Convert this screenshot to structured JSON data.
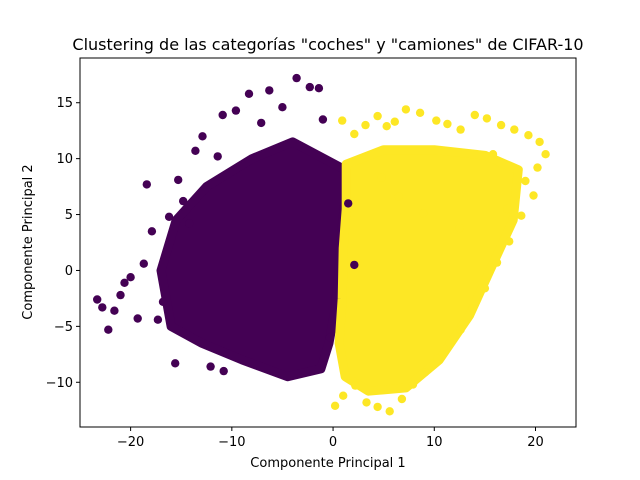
{
  "chart_data": {
    "type": "scatter",
    "title": "Clustering de las categorías \"coches\" y \"camiones\" de CIFAR-10",
    "xlabel": "Componente Principal 1",
    "ylabel": "Componente Principal 2",
    "xlim": [
      -25,
      24
    ],
    "ylim": [
      -14,
      19
    ],
    "xticks": [
      -20,
      -10,
      0,
      10,
      20
    ],
    "yticks": [
      -10,
      -5,
      0,
      5,
      10,
      15
    ],
    "grid": false,
    "legend": false,
    "colors": {
      "cluster_0": "#440154",
      "cluster_1": "#fde725"
    },
    "series": [
      {
        "color": "#440154",
        "x": [
          -23.3,
          -22.8,
          -22.2,
          -21.6,
          -21.0,
          -20.6,
          -20.0,
          -19.3,
          -18.7,
          -18.4,
          -17.9,
          -17.3,
          -16.8,
          -16.2,
          -15.6,
          -15.3,
          -14.8,
          -14.2,
          -13.6,
          -12.9,
          -12.1,
          -11.4,
          -10.8,
          -10.9,
          -9.6,
          -8.3,
          -7.1,
          -6.3,
          -5.0,
          -3.6,
          -2.3,
          -1.0,
          -0.3,
          1.5,
          2.1,
          -1.4
        ],
        "y": [
          -2.6,
          -3.3,
          -5.3,
          -3.6,
          -2.2,
          -1.1,
          -0.6,
          -4.3,
          0.6,
          7.7,
          3.5,
          -4.4,
          -2.8,
          4.8,
          -8.3,
          8.1,
          6.2,
          4.2,
          10.7,
          12.0,
          -8.6,
          10.2,
          -9.0,
          13.9,
          14.3,
          15.8,
          13.2,
          16.1,
          14.6,
          17.2,
          16.4,
          13.5,
          -6.0,
          6.0,
          0.5,
          16.3
        ]
      },
      {
        "color": "#fde725",
        "x": [
          0.2,
          1.0,
          2.2,
          3.3,
          4.4,
          5.6,
          6.8,
          7.9,
          9.1,
          10.3,
          11.5,
          12.6,
          13.8,
          15.0,
          16.2,
          17.4,
          18.6,
          19.8,
          20.2,
          21.0,
          20.4,
          19.3,
          17.9,
          16.6,
          15.2,
          14.0,
          12.6,
          11.3,
          10.2,
          8.6,
          7.2,
          6.1,
          5.3,
          4.4,
          3.2,
          2.1,
          0.9,
          4.8,
          6.5,
          8.9,
          12.5,
          17.2,
          19.0,
          15.8
        ],
        "y": [
          -12.1,
          -11.2,
          -10.3,
          -11.8,
          -12.2,
          -12.6,
          -11.5,
          -10.2,
          -9.1,
          -7.9,
          -6.5,
          -5.3,
          -3.4,
          -1.6,
          0.7,
          2.6,
          4.9,
          6.7,
          9.2,
          10.4,
          11.5,
          12.1,
          12.6,
          13.0,
          13.6,
          13.9,
          12.6,
          13.1,
          13.4,
          14.1,
          14.4,
          13.3,
          12.9,
          13.8,
          13.0,
          12.2,
          13.4,
          8.3,
          6.6,
          5.1,
          3.8,
          5.5,
          8.0,
          10.4
        ]
      }
    ]
  }
}
